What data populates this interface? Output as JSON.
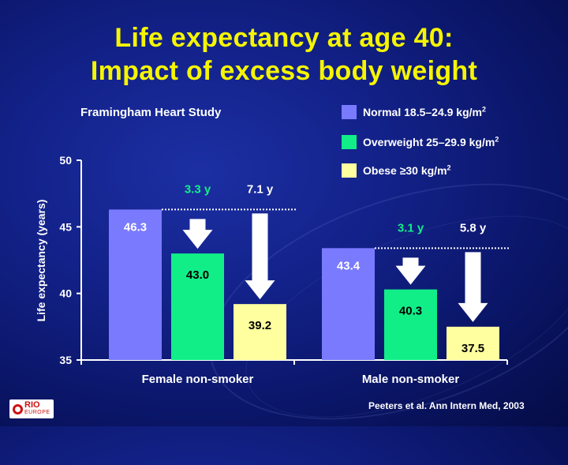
{
  "slide": {
    "title_line1": "Life expectancy at age 40:",
    "title_line2": "Impact of excess body weight",
    "subtitle": "Framingham Heart Study",
    "citation": "Peeters et al. Ann Intern Med, 2003",
    "logo_top": "RIO",
    "logo_bottom": "EUROPE"
  },
  "legend": [
    {
      "label": "Normal 18.5–24.9 kg/m",
      "sup": "2",
      "color": "#7a7aff"
    },
    {
      "label": "Overweight 25–29.9 kg/m",
      "sup": "2",
      "color": "#11ee88"
    },
    {
      "label": "Obese ≥30 kg/m",
      "sup": "2",
      "color": "#ffffa0"
    }
  ],
  "chart_data": {
    "type": "bar",
    "categories": [
      "Female non-smoker",
      "Male non-smoker"
    ],
    "series": [
      {
        "name": "Normal 18.5–24.9 kg/m2",
        "values": [
          46.3,
          43.4
        ],
        "color": "#7a7aff"
      },
      {
        "name": "Overweight 25–29.9 kg/m2",
        "values": [
          43.0,
          40.3
        ],
        "color": "#11ee88"
      },
      {
        "name": "Obese ≥30 kg/m2",
        "values": [
          39.2,
          37.5
        ],
        "color": "#ffffa0"
      }
    ],
    "data_labels": [
      [
        "46.3",
        "43.0",
        "39.2"
      ],
      [
        "43.4",
        "40.3",
        "37.5"
      ]
    ],
    "annotations": [
      {
        "category": "Female non-smoker",
        "overweight_loss": "3.3 y",
        "obese_loss": "7.1 y"
      },
      {
        "category": "Male non-smoker",
        "overweight_loss": "3.1 y",
        "obese_loss": "5.8 y"
      }
    ],
    "ylabel": "Life expectancy (years)",
    "xlabel": "",
    "ylim": [
      35,
      50
    ],
    "yticks": [
      35,
      40,
      45,
      50
    ],
    "grid": false,
    "legend_position": "top-right",
    "label_color": "#11ee88"
  }
}
